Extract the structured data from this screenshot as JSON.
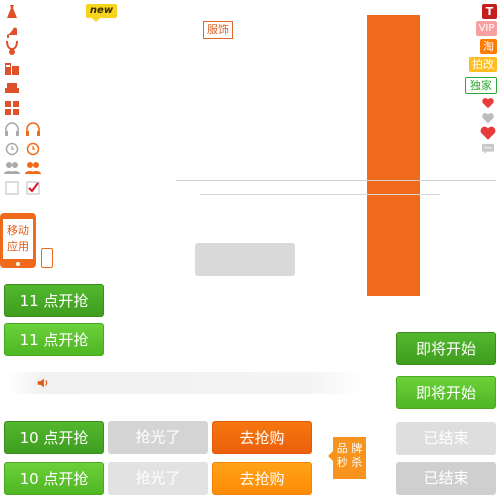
{
  "badges": {
    "new_label": "new",
    "fushi_label": "服饰"
  },
  "mobile_app": {
    "line1": "移动",
    "line2": "应用"
  },
  "right_badges": {
    "t_label": "T",
    "vip_label": "VIP",
    "tao_label": "淘",
    "paimai_label": "拍改",
    "dujia_label": "独家"
  },
  "buttons": {
    "row1_left": "11 点开抢",
    "row2_left": "11 点开抢",
    "row1_right": "即将开始",
    "row2_right": "即将开始",
    "row3": [
      "10 点开抢",
      "抢光了",
      "去抢购"
    ],
    "row4": [
      "10 点开抢",
      "抢光了",
      "去抢购"
    ],
    "ended1": "已结束",
    "ended2": "已结束"
  },
  "brand_tag": {
    "line1": "品 牌",
    "line2": "秒 杀"
  },
  "icons": [
    "dress-icon",
    "high-heel-icon",
    "necklace-icon",
    "appliance-icon",
    "sofa-icon",
    "grid-icon",
    "headphones-icon",
    "alarm-clock-icon",
    "users-icon",
    "checkbox-icon",
    "heart-icon",
    "comment-icon",
    "speaker-icon",
    "phone-icon"
  ],
  "colors": {
    "accent_orange": "#f06a1c",
    "green": "#4fb624",
    "gray": "#d4d4d4"
  }
}
